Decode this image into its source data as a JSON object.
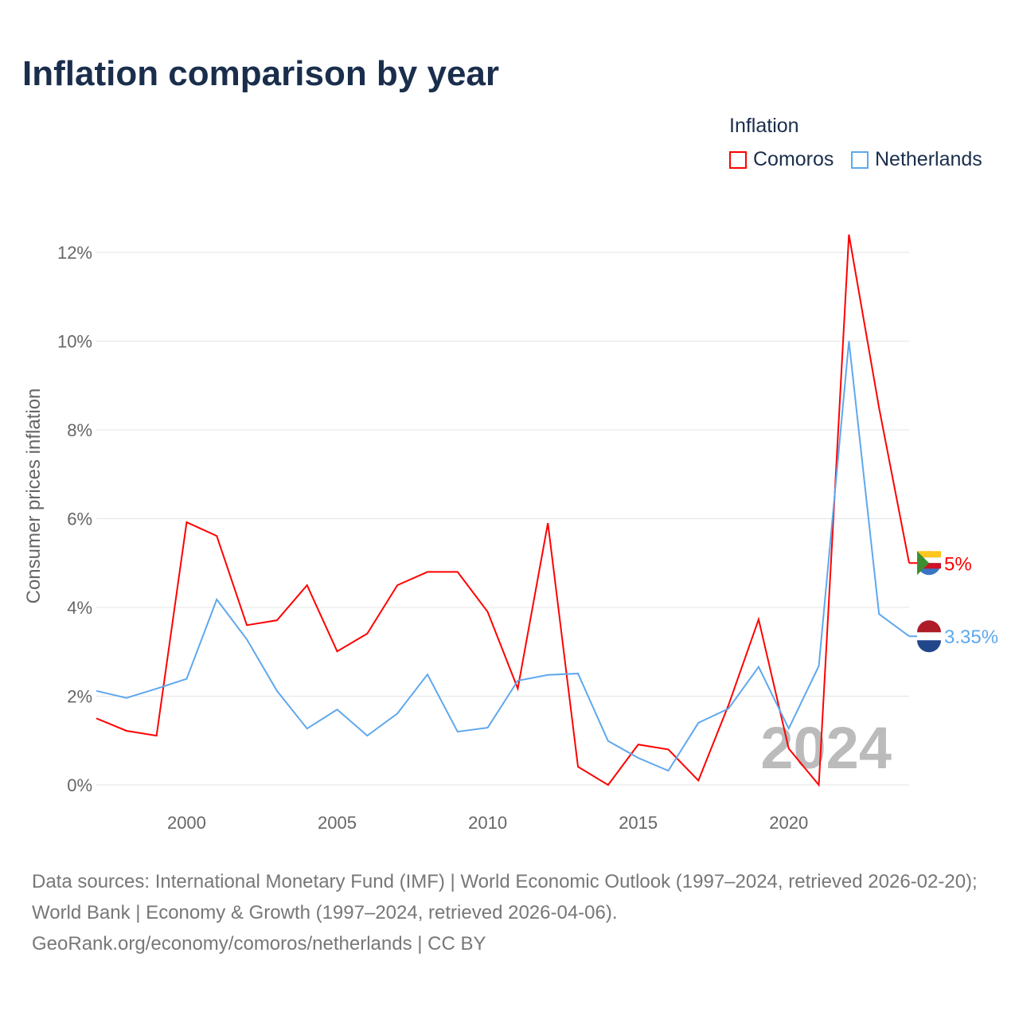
{
  "title": "Inflation comparison by year",
  "legend": {
    "title": "Inflation",
    "items": [
      "Comoros",
      "Netherlands"
    ]
  },
  "colors": {
    "Comoros": "#ff0000",
    "Netherlands": "#5ea8ee"
  },
  "chart_data": {
    "type": "line",
    "ylabel": "Consumer prices inflation",
    "xlabel": "",
    "xlim": [
      1997,
      2024
    ],
    "ylim": [
      0,
      12.5
    ],
    "x_ticks": [
      2000,
      2005,
      2010,
      2015,
      2020
    ],
    "y_ticks": [
      0,
      2,
      4,
      6,
      8,
      10,
      12
    ],
    "y_tick_labels": [
      "0%",
      "2%",
      "4%",
      "6%",
      "8%",
      "10%",
      "12%"
    ],
    "x": [
      1997,
      1998,
      1999,
      2000,
      2001,
      2002,
      2003,
      2004,
      2005,
      2006,
      2007,
      2008,
      2009,
      2010,
      2011,
      2012,
      2013,
      2014,
      2015,
      2016,
      2017,
      2018,
      2019,
      2020,
      2021,
      2022,
      2023,
      2024
    ],
    "series": [
      {
        "name": "Comoros",
        "values": [
          1.5,
          1.22,
          1.11,
          5.92,
          5.61,
          3.6,
          3.71,
          4.5,
          3.01,
          3.41,
          4.5,
          4.8,
          4.8,
          3.9,
          2.17,
          5.9,
          0.41,
          0,
          0.91,
          0.8,
          0.1,
          1.8,
          3.73,
          0.82,
          0,
          12.4,
          8.5,
          5.0
        ],
        "end_label": "5%"
      },
      {
        "name": "Netherlands",
        "values": [
          2.12,
          1.96,
          2.17,
          2.39,
          4.18,
          3.28,
          2.12,
          1.27,
          1.7,
          1.11,
          1.61,
          2.49,
          1.2,
          1.29,
          2.35,
          2.48,
          2.51,
          0.99,
          0.61,
          0.32,
          1.4,
          1.72,
          2.66,
          1.27,
          2.68,
          10.0,
          3.85,
          3.35
        ],
        "end_label": "3.35%"
      }
    ],
    "watermark_year": "2024",
    "grid": true
  },
  "source": "Data sources: International Monetary Fund (IMF) | World Economic Outlook (1997–2024, retrieved 2026-02-20); World Bank | Economy & Growth (1997–2024, retrieved 2026-04-06).",
  "credit": "GeoRank.org/economy/comoros/netherlands | CC BY"
}
